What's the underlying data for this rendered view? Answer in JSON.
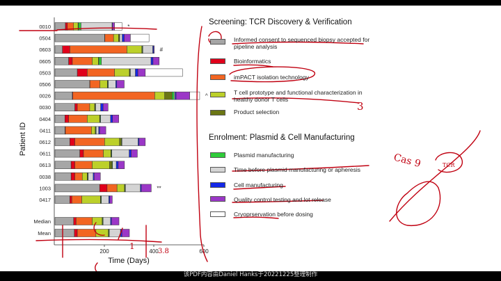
{
  "chart_data": {
    "type": "bar",
    "orientation": "horizontal",
    "stacked": true,
    "ylabel": "Patient ID",
    "xlabel": "Time (Days)",
    "xlim": [
      0,
      600
    ],
    "xticks": [
      0,
      200,
      400,
      600
    ],
    "xtick_labels": [
      "",
      "200",
      "400",
      "600"
    ],
    "segment_order": [
      "Informed consent to sequenced biopsy accepted for pipeline analysis",
      "Bioinformatics",
      "imPACT isolation technology",
      "T cell prototype and functional characterization in healthy donor T cells",
      "Product selection",
      "Plasmid manufacturing",
      "Time before plasmid manufacturing or apheresis",
      "Cell manufacturing",
      "Quality control testing and lot release",
      "Cryopreservation before dosing"
    ],
    "patients": [
      {
        "id": "0010",
        "segments": [
          42,
          8,
          25,
          18,
          2,
          10,
          125,
          2,
          8,
          30
        ],
        "marker": "*"
      },
      {
        "id": "0504",
        "segments": [
          200,
          1,
          35,
          20,
          4,
          1,
          10,
          8,
          25,
          75
        ],
        "marker": ""
      },
      {
        "id": "0603",
        "segments": [
          30,
          30,
          230,
          60,
          2,
          2,
          40,
          4,
          2,
          0
        ],
        "marker": "#"
      },
      {
        "id": "0605",
        "segments": [
          55,
          15,
          80,
          25,
          2,
          10,
          200,
          8,
          25,
          0
        ],
        "marker": ""
      },
      {
        "id": "0503",
        "segments": [
          90,
          40,
          110,
          60,
          2,
          2,
          20,
          10,
          30,
          150
        ],
        "marker": ""
      },
      {
        "id": "0506",
        "segments": [
          140,
          1,
          40,
          30,
          2,
          2,
          30,
          4,
          30,
          0
        ],
        "marker": ""
      },
      {
        "id": "0026",
        "segments": [
          70,
          2,
          330,
          40,
          30,
          8,
          4,
          4,
          55,
          40
        ],
        "marker": "^"
      },
      {
        "id": "0030",
        "segments": [
          80,
          10,
          50,
          20,
          2,
          2,
          20,
          10,
          20,
          0
        ],
        "marker": ""
      },
      {
        "id": "0404",
        "segments": [
          40,
          15,
          75,
          50,
          2,
          2,
          40,
          8,
          25,
          0
        ],
        "marker": ""
      },
      {
        "id": "0411",
        "segments": [
          40,
          2,
          105,
          15,
          2,
          2,
          10,
          4,
          25,
          0
        ],
        "marker": ""
      },
      {
        "id": "0612",
        "segments": [
          60,
          20,
          120,
          60,
          8,
          2,
          65,
          4,
          25,
          0
        ],
        "marker": ""
      },
      {
        "id": "0611",
        "segments": [
          100,
          15,
          80,
          30,
          2,
          2,
          70,
          8,
          25,
          0
        ],
        "marker": ""
      },
      {
        "id": "0613",
        "segments": [
          65,
          15,
          70,
          70,
          10,
          2,
          15,
          8,
          25,
          0
        ],
        "marker": ""
      },
      {
        "id": "0038",
        "segments": [
          65,
          15,
          30,
          20,
          2,
          2,
          20,
          4,
          25,
          0
        ],
        "marker": ""
      },
      {
        "id": "1003",
        "segments": [
          180,
          30,
          40,
          30,
          2,
          2,
          60,
          4,
          40,
          0
        ],
        "marker": "**"
      },
      {
        "id": "0417",
        "segments": [
          60,
          8,
          40,
          75,
          2,
          2,
          30,
          4,
          10,
          0
        ],
        "marker": ""
      },
      {
        "id": "Median",
        "segments": [
          75,
          10,
          65,
          40,
          2,
          2,
          30,
          4,
          30,
          0
        ],
        "marker": ""
      },
      {
        "id": "Mean",
        "segments": [
          78,
          12,
          75,
          50,
          2,
          2,
          45,
          6,
          30,
          0
        ],
        "marker": ""
      }
    ],
    "legend": [
      {
        "group": "Screening: TCR  Discovery & Verification",
        "items": [
          {
            "label": "Informed consent to sequenced biopsy accepted for pipeline analysis",
            "color": "#a6a6a6"
          },
          {
            "label": "Bioinformatics",
            "color": "#e0001b"
          },
          {
            "label": "imPACT isolation technology",
            "color": "#f26522"
          },
          {
            "label": "T cell prototype and functional characterization in healthy donor T cells",
            "color": "#bcd02a"
          },
          {
            "label": "Product selection",
            "color": "#6b7614"
          }
        ]
      },
      {
        "group": "Enrolment: Plasmid & Cell Manufacturing",
        "items": [
          {
            "label": "Plasmid manufacturing",
            "color": "#2fcc3a"
          },
          {
            "label": "Time before plasmid manufacturing or apheresis",
            "color": "#d4d4d4"
          },
          {
            "label": "Cell manufacturing",
            "color": "#1428e8"
          },
          {
            "label": "Quality control testing and lot release",
            "color": "#9b37c7"
          },
          {
            "label": "Cryoprservation before dosing",
            "color": "#ffffff"
          }
        ]
      }
    ]
  },
  "legend_screening": {
    "title": "Screening: TCR  Discovery & Verification",
    "item1": "Informed consent to sequenced biopsy accepted for pipeline analysis",
    "item2": "Bioinformatics",
    "item3": "imPACT isolation technology",
    "item4": "T cell prototype and functional characterization in healthy donor T cells",
    "item5": "Product selection"
  },
  "legend_enrolment": {
    "title": "Enrolment: Plasmid & Cell Manufacturing",
    "item1": "Plasmid manufacturing",
    "item2": "Time before plasmid manufacturing or apheresis",
    "item3": "Cell manufacturing",
    "item4": "Quality control testing and lot release",
    "item5": "Cryoprservation before dosing"
  },
  "handwriting": {
    "note_3": "3",
    "note_cas": "Cas 9",
    "note_tcr": "TCR",
    "note_38": "3.8",
    "note_1": "1"
  },
  "watermark": "该PDF内容由Daniel Hanks于20221225整理制作"
}
